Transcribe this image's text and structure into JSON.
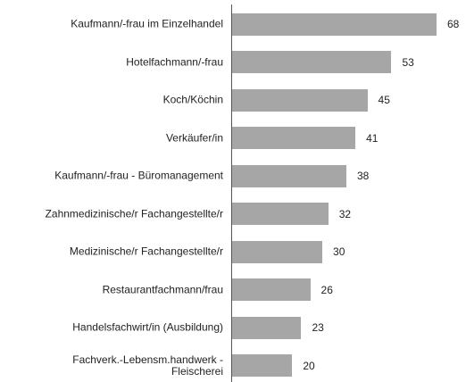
{
  "chart_data": {
    "type": "bar",
    "orientation": "horizontal",
    "categories": [
      "Kaufmann/-frau im Einzelhandel",
      "Hotelfachmann/-frau",
      "Koch/Köchin",
      "Verkäufer/in",
      "Kaufmann/-frau - Büromanagement",
      "Zahnmedizinische/r Fachangestellte/r",
      "Medizinische/r Fachangestellte/r",
      "Restaurantfachmann/frau",
      "Handelsfachwirt/in (Ausbildung)",
      "Fachverk.-Lebensm.handwerk -\nFleischerei"
    ],
    "values": [
      68,
      53,
      45,
      41,
      38,
      32,
      30,
      26,
      23,
      20
    ],
    "color": "#a6a6a6"
  }
}
